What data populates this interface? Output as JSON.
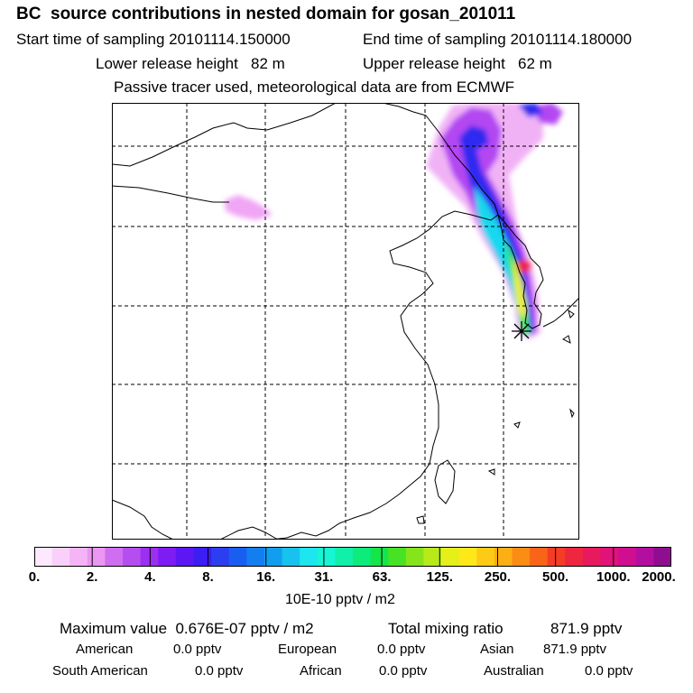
{
  "header": {
    "title": "BC  source contributions in nested domain for gosan_201011",
    "start": "Start time of sampling 20101114.150000",
    "end": "End time of sampling 20101114.180000",
    "lower": "Lower release height   82 m",
    "upper": "Upper release height   62 m",
    "tracer": "Passive tracer used, meteorological data are from ECMWF"
  },
  "colorbar": {
    "ticks": [
      "0.",
      "2.",
      "4.",
      "8.",
      "16.",
      "31.",
      "63.",
      "125.",
      "250.",
      "500.",
      "1000.",
      "2000."
    ],
    "unit": "10E-10 pptv / m2",
    "colors": [
      "#fde8fd",
      "#f9d0f9",
      "#f4b4f6",
      "#eb96f2",
      "#cf6ef0",
      "#b64df0",
      "#9b2ff2",
      "#7e1cf4",
      "#5d16f4",
      "#3c1df2",
      "#2b3ef0",
      "#1a5ef0",
      "#137eef",
      "#129eee",
      "#17c2ee",
      "#1de6ef",
      "#16f5d4",
      "#10f0a8",
      "#0deb7c",
      "#12e64a",
      "#48e224",
      "#86e41b",
      "#b8ea1a",
      "#e5ef1a",
      "#fee81a",
      "#fdcb16",
      "#fcae14",
      "#fb8c14",
      "#f86418",
      "#f43c26",
      "#ee2640",
      "#e81a5e",
      "#e1127a",
      "#d00e90",
      "#b40ea0",
      "#8f0e8f"
    ]
  },
  "summary": {
    "max": "Maximum value  0.676E-07 pptv / m2",
    "total_label": "Total mixing ratio",
    "total_value": "871.9 pptv",
    "regions": [
      {
        "label": "American",
        "value": "0.0 pptv"
      },
      {
        "label": "European",
        "value": "0.0 pptv"
      },
      {
        "label": "Asian",
        "value": "871.9 pptv"
      },
      {
        "label": "South American",
        "value": "0.0 pptv"
      },
      {
        "label": "African",
        "value": "0.0 pptv"
      },
      {
        "label": "Australian",
        "value": "0.0 pptv"
      }
    ]
  }
}
